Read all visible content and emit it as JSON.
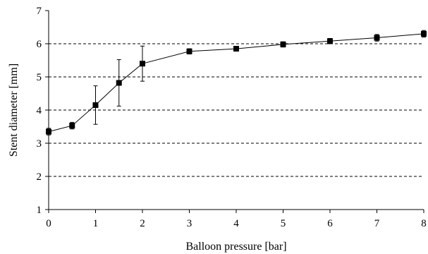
{
  "chart_data": {
    "type": "line",
    "title": "",
    "xlabel": "Balloon pressure [bar]",
    "ylabel": "Stent diameter [mm]",
    "xlim": [
      0,
      8
    ],
    "ylim": [
      1,
      7
    ],
    "xticks": [
      0,
      1,
      2,
      3,
      4,
      5,
      6,
      7,
      8
    ],
    "yticks": [
      1,
      2,
      3,
      4,
      5,
      6,
      7
    ],
    "grid": "horizontal dashed",
    "legend": "none",
    "series": [
      {
        "marker": "square",
        "color": "#000000",
        "x": [
          0,
          0.5,
          1,
          1.5,
          2,
          3,
          4,
          5,
          6,
          7,
          8
        ],
        "y": [
          3.35,
          3.53,
          4.15,
          4.82,
          5.4,
          5.77,
          5.85,
          5.98,
          6.08,
          6.18,
          6.3
        ],
        "err": [
          0.1,
          0.1,
          0.58,
          0.7,
          0.53,
          0.08,
          0.05,
          0.08,
          0.08,
          0.1,
          0.1
        ]
      }
    ]
  }
}
